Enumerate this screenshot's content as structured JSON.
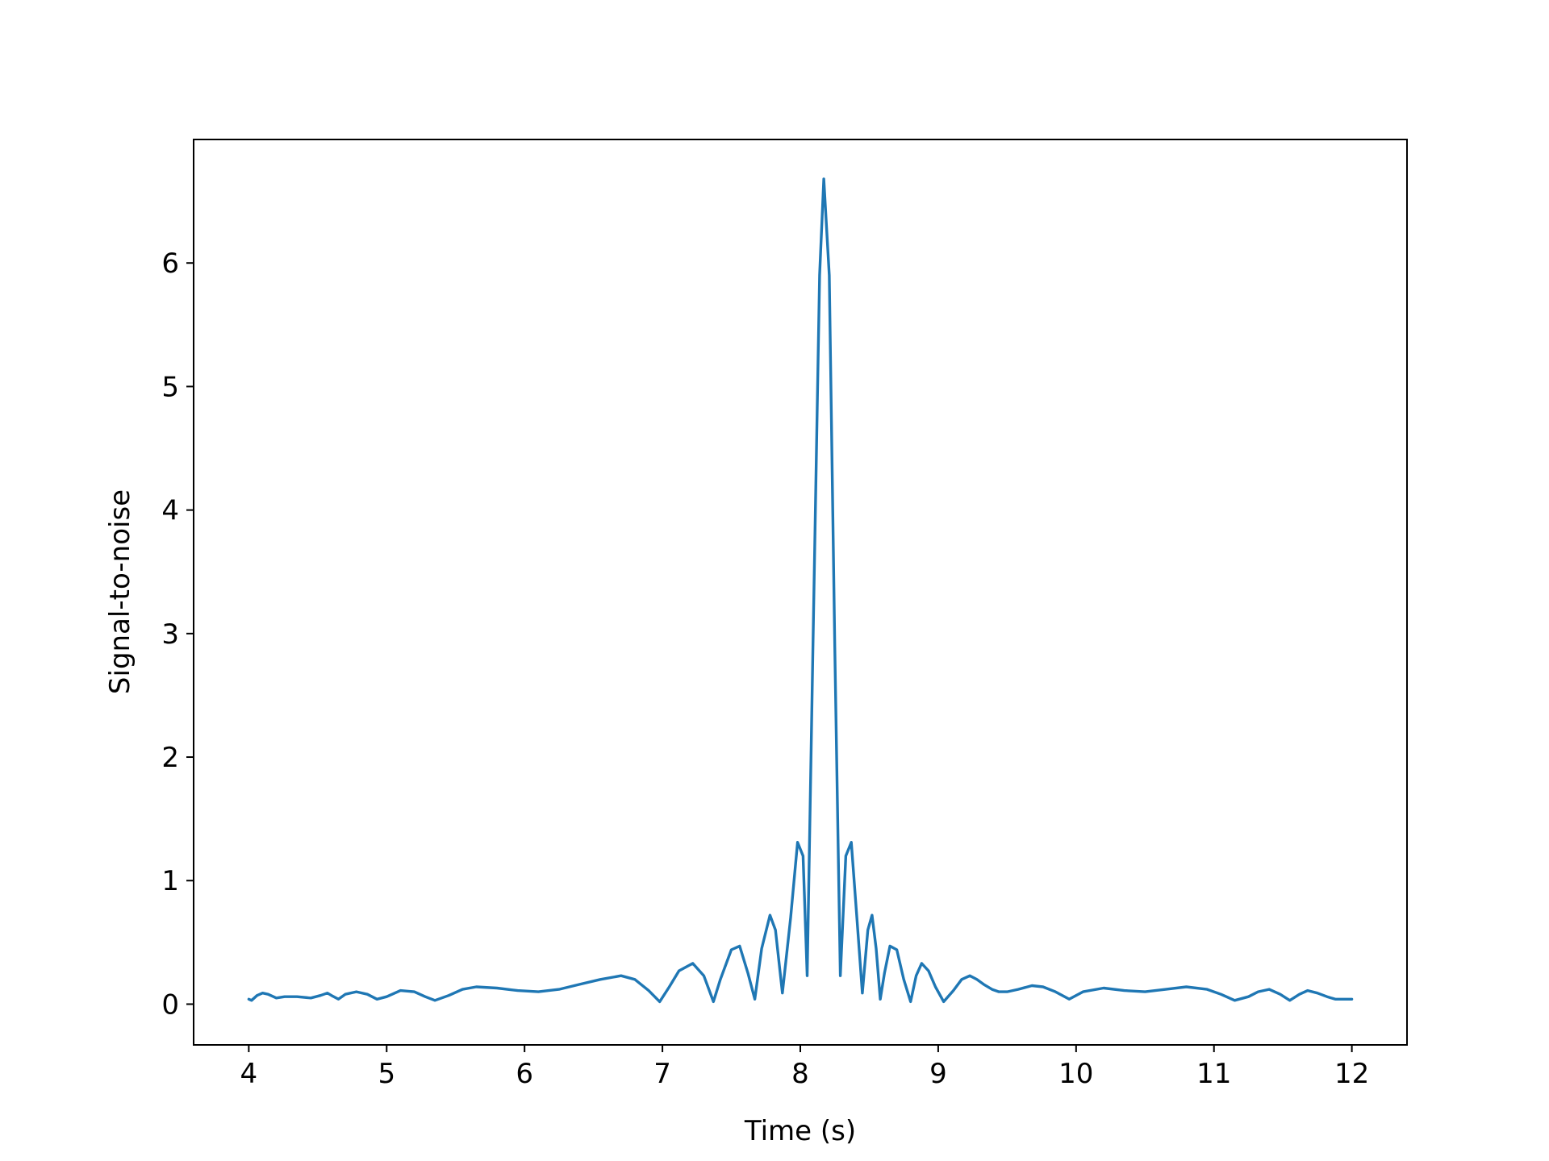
{
  "chart_data": {
    "type": "line",
    "title": "",
    "xlabel": "Time (s)",
    "ylabel": "Signal-to-noise",
    "xlim": [
      3.6,
      12.4
    ],
    "ylim": [
      -0.33,
      7.0
    ],
    "xticks": [
      4,
      5,
      6,
      7,
      8,
      9,
      10,
      11,
      12
    ],
    "xtick_labels": [
      "4",
      "5",
      "6",
      "7",
      "8",
      "9",
      "10",
      "11",
      "12"
    ],
    "yticks": [
      0,
      1,
      2,
      3,
      4,
      5,
      6
    ],
    "ytick_labels": [
      "0",
      "1",
      "2",
      "3",
      "4",
      "5",
      "6"
    ],
    "grid": false,
    "legend": "none",
    "series": [
      {
        "color": "#1f77b4",
        "x": [
          4.0,
          4.02,
          4.06,
          4.1,
          4.14,
          4.2,
          4.26,
          4.35,
          4.45,
          4.52,
          4.57,
          4.6,
          4.65,
          4.7,
          4.78,
          4.86,
          4.93,
          5.0,
          5.1,
          5.2,
          5.28,
          5.35,
          5.45,
          5.55,
          5.65,
          5.8,
          5.95,
          6.1,
          6.25,
          6.4,
          6.55,
          6.7,
          6.8,
          6.9,
          6.98,
          7.05,
          7.12,
          7.22,
          7.3,
          7.37,
          7.42,
          7.5,
          7.56,
          7.62,
          7.67,
          7.72,
          7.78,
          7.82,
          7.87,
          7.93,
          7.98,
          8.02,
          8.05,
          8.09,
          8.14,
          8.17,
          8.21,
          8.25,
          8.29,
          8.33,
          8.37,
          8.41,
          8.45,
          8.49,
          8.52,
          8.55,
          8.58,
          8.61,
          8.65,
          8.7,
          8.75,
          8.8,
          8.84,
          8.88,
          8.93,
          8.98,
          9.04,
          9.11,
          9.17,
          9.23,
          9.28,
          9.33,
          9.39,
          9.44,
          9.5,
          9.58,
          9.68,
          9.76,
          9.85,
          9.95,
          10.05,
          10.2,
          10.35,
          10.5,
          10.65,
          10.8,
          10.95,
          11.05,
          11.15,
          11.25,
          11.32,
          11.4,
          11.48,
          11.55,
          11.62,
          11.68,
          11.75,
          11.82,
          11.88,
          11.94,
          12.0
        ],
        "y": [
          0.04,
          0.03,
          0.07,
          0.09,
          0.08,
          0.05,
          0.06,
          0.06,
          0.05,
          0.07,
          0.09,
          0.07,
          0.04,
          0.08,
          0.1,
          0.08,
          0.04,
          0.06,
          0.11,
          0.1,
          0.06,
          0.03,
          0.07,
          0.12,
          0.14,
          0.13,
          0.11,
          0.1,
          0.12,
          0.16,
          0.2,
          0.23,
          0.2,
          0.11,
          0.02,
          0.14,
          0.27,
          0.33,
          0.23,
          0.02,
          0.2,
          0.44,
          0.47,
          0.25,
          0.04,
          0.45,
          0.72,
          0.6,
          0.09,
          0.7,
          1.31,
          1.2,
          0.23,
          2.8,
          5.9,
          6.68,
          5.9,
          2.9,
          0.23,
          1.2,
          1.31,
          0.7,
          0.09,
          0.6,
          0.72,
          0.45,
          0.04,
          0.25,
          0.47,
          0.44,
          0.2,
          0.02,
          0.23,
          0.33,
          0.27,
          0.14,
          0.02,
          0.11,
          0.2,
          0.23,
          0.2,
          0.16,
          0.12,
          0.1,
          0.1,
          0.12,
          0.15,
          0.14,
          0.1,
          0.04,
          0.1,
          0.13,
          0.11,
          0.1,
          0.12,
          0.14,
          0.12,
          0.08,
          0.03,
          0.06,
          0.1,
          0.12,
          0.08,
          0.03,
          0.08,
          0.11,
          0.09,
          0.06,
          0.04,
          0.04,
          0.04
        ]
      }
    ]
  }
}
